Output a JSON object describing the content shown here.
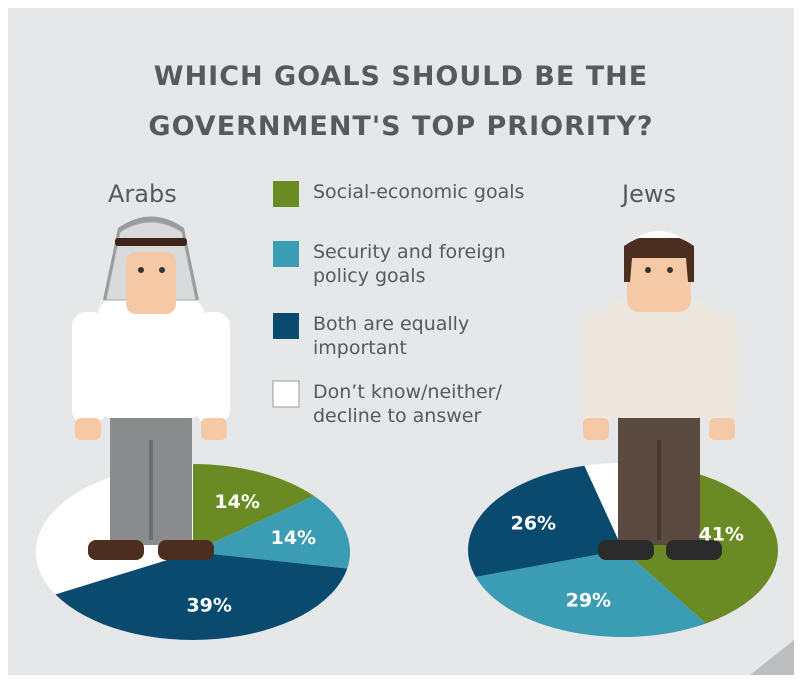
{
  "title": "WHICH GOALS SHOULD BE THE GOVERNMENT'S TOP PRIORITY?",
  "chart_data": [
    {
      "type": "pie",
      "title": "Arabs",
      "categories": [
        "Social-economic goals",
        "Security and foreign policy goals",
        "Both are equally important",
        "Don’t know/neither/ decline to answer"
      ],
      "values": [
        14,
        14,
        39,
        33
      ],
      "value_labels": [
        "14%",
        "14%",
        "39%",
        null
      ],
      "colors": [
        "#6a8b23",
        "#3b9db3",
        "#0a4a6e",
        "#ffffff"
      ]
    },
    {
      "type": "pie",
      "title": "Jews",
      "categories": [
        "Social-economic goals",
        "Security and foreign policy goals",
        "Both are equally important",
        "Don’t know/neither/ decline to answer"
      ],
      "values": [
        41,
        29,
        26,
        4
      ],
      "value_labels": [
        "41%",
        "29%",
        "26%",
        null
      ],
      "colors": [
        "#6a8b23",
        "#3b9db3",
        "#0a4a6e",
        "#ffffff"
      ]
    }
  ]
}
